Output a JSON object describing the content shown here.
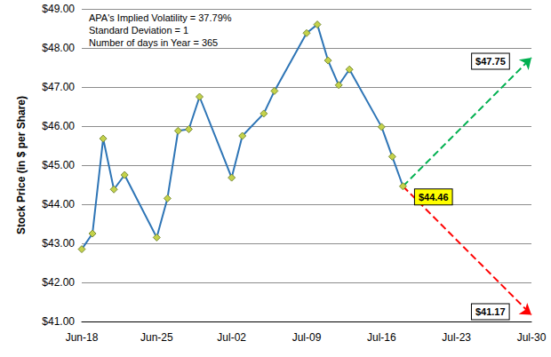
{
  "chart_data": {
    "type": "line",
    "y_label": "Stock Price (in $ per Share)",
    "annotations": [
      "APA's Implied Volatility = 37.79%",
      "Standard Deviation = 1",
      "Number of days in Year = 365"
    ],
    "categories": [
      "Jun-18",
      null,
      null,
      null,
      null,
      null,
      null,
      "Jun-25",
      null,
      null,
      null,
      null,
      null,
      null,
      "Jul-02",
      null,
      null,
      null,
      null,
      null,
      null,
      "Jul-09",
      null,
      null,
      null,
      null,
      null,
      null,
      "Jul-16",
      null,
      null,
      null,
      null,
      null,
      null,
      "Jul-23",
      null,
      null,
      null,
      null,
      null,
      null,
      "Jul-30"
    ],
    "series": [
      {
        "color": "#2e75b6",
        "marker": "diamond",
        "line_style": "solid",
        "values": [
          42.85,
          43.25,
          45.68,
          44.38,
          44.75,
          null,
          null,
          43.15,
          44.15,
          45.88,
          45.92,
          46.75,
          null,
          null,
          44.68,
          45.75,
          null,
          46.32,
          46.9,
          null,
          null,
          48.38,
          48.6,
          47.68,
          47.05,
          47.45,
          null,
          null,
          45.98,
          45.22,
          44.46,
          null,
          null,
          null,
          null,
          null,
          null,
          null,
          null,
          null,
          null,
          null,
          null
        ],
        "value_labels": [
          null,
          null,
          null,
          null,
          null,
          null,
          null,
          null,
          null,
          null,
          null,
          null,
          null,
          null,
          null,
          null,
          null,
          null,
          null,
          null,
          null,
          null,
          null,
          null,
          null,
          null,
          null,
          null,
          null,
          null,
          "$44.46",
          null,
          null,
          null,
          null,
          null,
          null,
          null,
          null,
          null,
          null,
          null,
          null
        ]
      },
      {
        "color": "#00b050",
        "marker": "arrow",
        "line_style": "dashed",
        "values": [
          null,
          null,
          null,
          null,
          null,
          null,
          null,
          null,
          null,
          null,
          null,
          null,
          null,
          null,
          null,
          null,
          null,
          null,
          null,
          null,
          null,
          null,
          null,
          null,
          null,
          null,
          null,
          null,
          null,
          null,
          44.46,
          null,
          null,
          null,
          null,
          null,
          null,
          null,
          null,
          null,
          null,
          null,
          47.75
        ],
        "value_labels": [
          null,
          null,
          null,
          null,
          null,
          null,
          null,
          null,
          null,
          null,
          null,
          null,
          null,
          null,
          null,
          null,
          null,
          null,
          null,
          null,
          null,
          null,
          null,
          null,
          null,
          null,
          null,
          null,
          null,
          null,
          null,
          null,
          null,
          null,
          null,
          null,
          null,
          null,
          null,
          null,
          null,
          null,
          "$47.75"
        ]
      },
      {
        "color": "#ff0000",
        "marker": "arrow",
        "line_style": "dashed",
        "values": [
          null,
          null,
          null,
          null,
          null,
          null,
          null,
          null,
          null,
          null,
          null,
          null,
          null,
          null,
          null,
          null,
          null,
          null,
          null,
          null,
          null,
          null,
          null,
          null,
          null,
          null,
          null,
          null,
          null,
          null,
          44.46,
          null,
          null,
          null,
          null,
          null,
          null,
          null,
          null,
          null,
          null,
          null,
          41.17
        ],
        "value_labels": [
          null,
          null,
          null,
          null,
          null,
          null,
          null,
          null,
          null,
          null,
          null,
          null,
          null,
          null,
          null,
          null,
          null,
          null,
          null,
          null,
          null,
          null,
          null,
          null,
          null,
          null,
          null,
          null,
          null,
          null,
          null,
          null,
          null,
          null,
          null,
          null,
          null,
          null,
          null,
          null,
          null,
          null,
          "$41.17"
        ]
      }
    ],
    "ylim": [
      41,
      49
    ],
    "yticks": [
      {
        "value": 41,
        "label": "$41.00"
      },
      {
        "value": 42,
        "label": "$42.00"
      },
      {
        "value": 43,
        "label": "$43.00"
      },
      {
        "value": 44,
        "label": "$44.00"
      },
      {
        "value": 45,
        "label": "$45.00"
      },
      {
        "value": 46,
        "label": "$46.00"
      },
      {
        "value": 47,
        "label": "$47.00"
      },
      {
        "value": 48,
        "label": "$48.00"
      },
      {
        "value": 49,
        "label": "$49.00"
      }
    ],
    "grid": true
  }
}
